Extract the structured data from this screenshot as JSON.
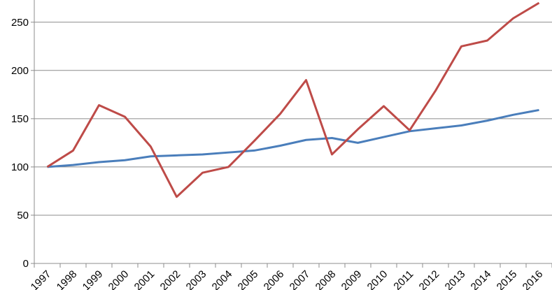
{
  "chart_data": {
    "type": "line",
    "categories": [
      "1997",
      "1998",
      "1999",
      "2000",
      "2001",
      "2002",
      "2003",
      "2004",
      "2005",
      "2006",
      "2007",
      "2008",
      "2009",
      "2010",
      "2011",
      "2012",
      "2013",
      "2014",
      "2015",
      "2016"
    ],
    "series": [
      {
        "color": "#4a7ebb",
        "values": [
          100,
          102,
          105,
          107,
          111,
          112,
          113,
          115,
          117,
          122,
          128,
          130,
          125,
          131,
          137,
          140,
          143,
          148,
          154,
          159
        ]
      },
      {
        "color": "#be4b48",
        "values": [
          100,
          117,
          164,
          152,
          121,
          69,
          94,
          100,
          127,
          155,
          190,
          113,
          139,
          163,
          138,
          179,
          225,
          231,
          254,
          270
        ]
      }
    ],
    "ylim": [
      0,
      273
    ],
    "yticks": [
      0,
      50,
      100,
      150,
      200,
      250
    ],
    "grid": true
  }
}
